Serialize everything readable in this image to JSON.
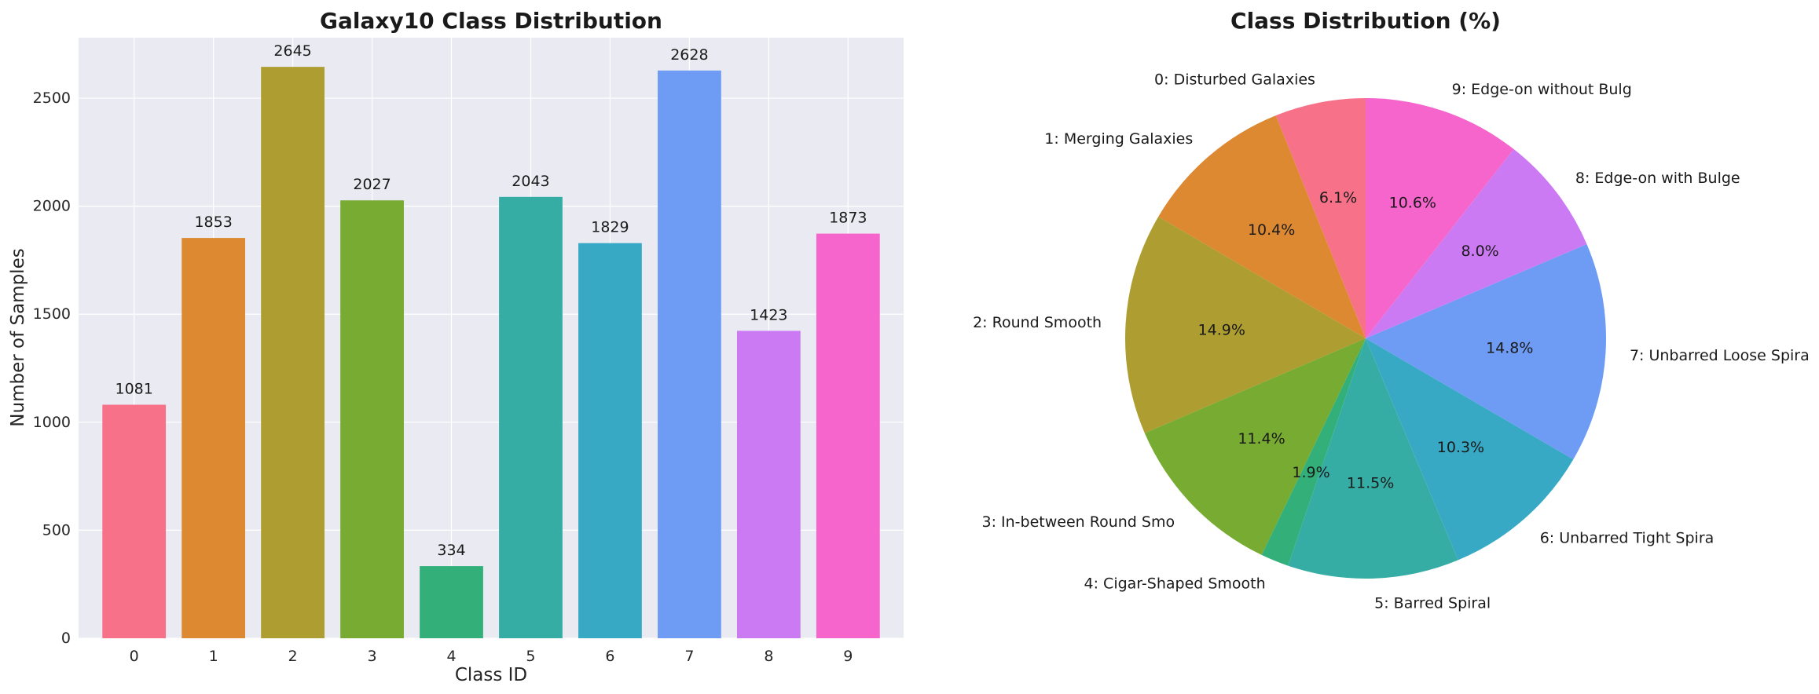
{
  "chart_data": [
    {
      "type": "bar",
      "title": "Galaxy10 Class Distribution",
      "xlabel": "Class ID",
      "ylabel": "Number of Samples",
      "categories": [
        "0",
        "1",
        "2",
        "3",
        "4",
        "5",
        "6",
        "7",
        "8",
        "9"
      ],
      "values": [
        1081,
        1853,
        2645,
        2027,
        334,
        2043,
        1829,
        2628,
        1423,
        1873
      ],
      "data_labels": [
        "1081",
        "1853",
        "2645",
        "2027",
        "334",
        "2043",
        "1829",
        "2628",
        "1423",
        "1873"
      ],
      "ylim": [
        0,
        2780
      ],
      "yticks": [
        0,
        500,
        1000,
        1500,
        2000,
        2500
      ],
      "ytick_labels": [
        "0",
        "500",
        "1000",
        "1500",
        "2000",
        "2500"
      ],
      "grid": true,
      "colors": [
        "#f77189",
        "#dc8932",
        "#ae9d31",
        "#77ab31",
        "#33b07a",
        "#36ada4",
        "#38a9c5",
        "#6e9bf4",
        "#cc7af4",
        "#f565cc"
      ]
    },
    {
      "type": "pie",
      "title": "Class Distribution (%)",
      "labels": [
        "0: Disturbed Galaxies",
        "1: Merging Galaxies",
        "2: Round Smooth",
        "3: In-between Round Smo",
        "4: Cigar-Shaped Smooth",
        "5: Barred Spiral",
        "6: Unbarred Tight Spira",
        "7: Unbarred Loose Spira",
        "8: Edge-on with Bulge",
        "9: Edge-on without Bulg"
      ],
      "values": [
        1081,
        1853,
        2645,
        2027,
        334,
        2043,
        1829,
        2628,
        1423,
        1873
      ],
      "pct_labels": [
        "6.1%",
        "10.4%",
        "14.9%",
        "11.4%",
        "1.9%",
        "11.5%",
        "10.3%",
        "14.8%",
        "8.0%",
        "10.6%"
      ],
      "start_angle_deg": 90,
      "direction": "counterclockwise",
      "colors": [
        "#f77189",
        "#dc8932",
        "#ae9d31",
        "#77ab31",
        "#33b07a",
        "#36ada4",
        "#38a9c5",
        "#6e9bf4",
        "#cc7af4",
        "#f565cc"
      ]
    }
  ]
}
